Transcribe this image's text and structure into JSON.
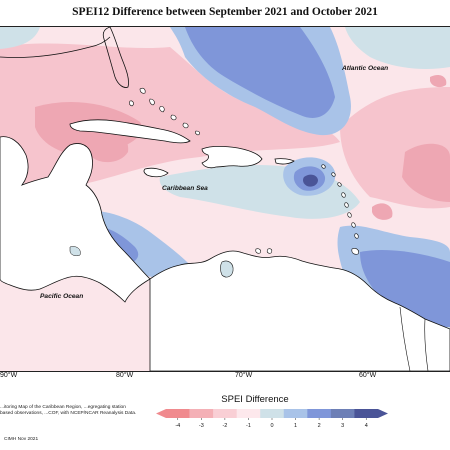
{
  "title": "SPEI12 Difference between September 2021 and October 2021",
  "map": {
    "labels": {
      "atlantic": "Atlantic Ocean",
      "caribbean": "Caribbean Sea",
      "pacific": "Pacific Ocean"
    },
    "longitudes": [
      "90°W",
      "80°W",
      "70°W",
      "60°W"
    ]
  },
  "legend": {
    "title": "SPEI Difference",
    "ticks": [
      "-4",
      "-3",
      "-2",
      "-1",
      "0",
      "1",
      "2",
      "3",
      "4"
    ],
    "colors": [
      "#f08a8e",
      "#f4b0b6",
      "#f9cfd5",
      "#fde8ec",
      "#cfe1e8",
      "#a9c3e8",
      "#7f96d9",
      "#6d7fb6",
      "#4a5497"
    ]
  },
  "notes": "...itoring Map of the Caribbean Region, ...egregating station based observations, ...COF, with NCEP/NCAR Reanalysis Data.",
  "credit": "CIMH Nov 2021"
}
